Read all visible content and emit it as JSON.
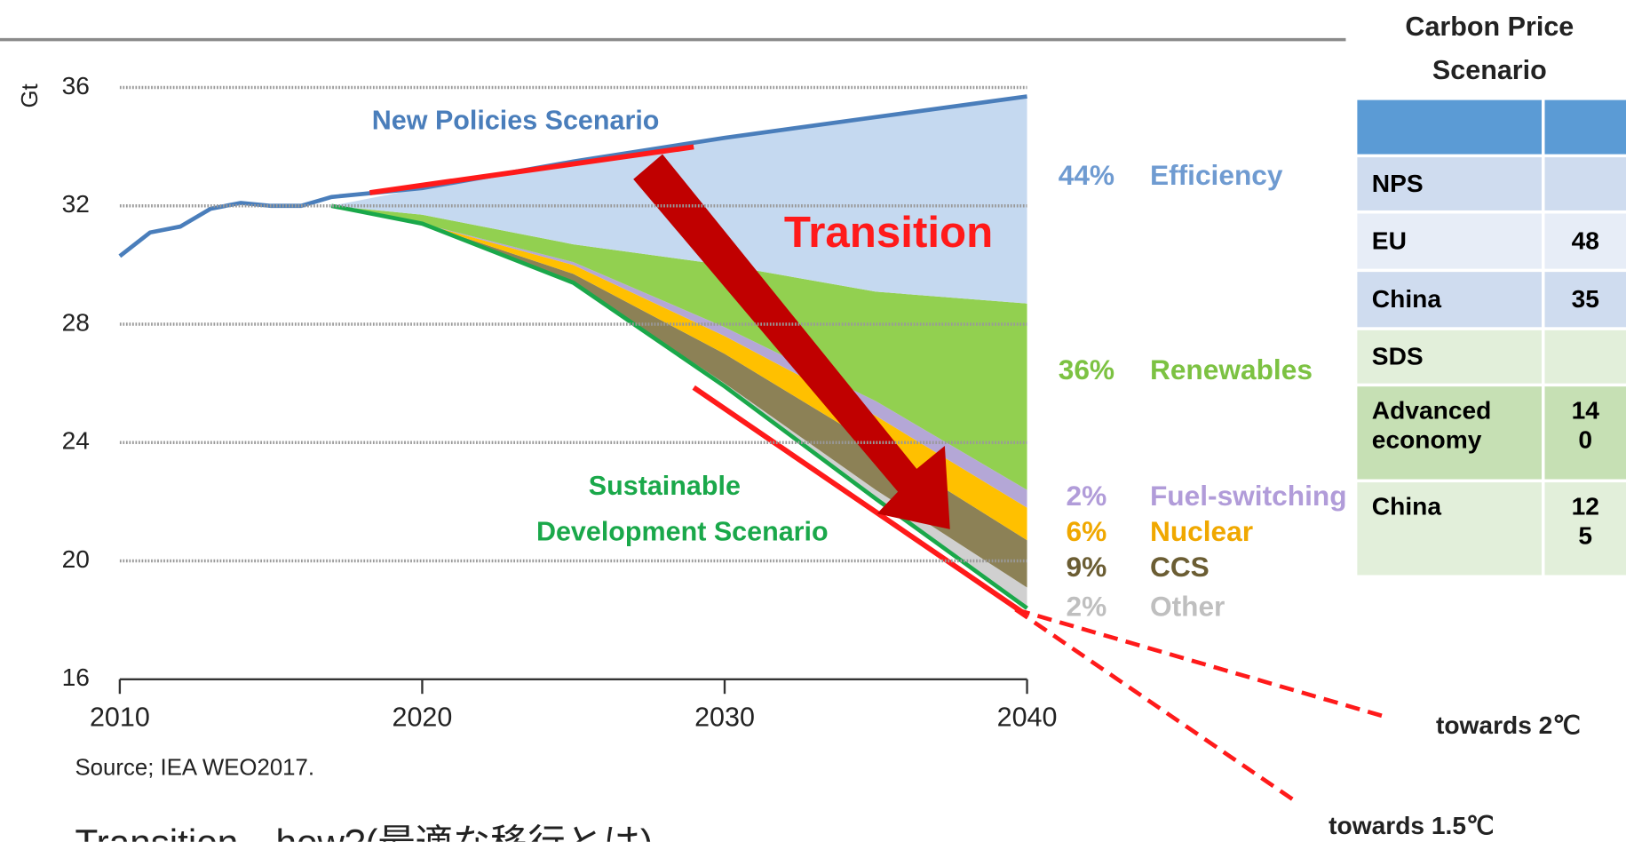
{
  "chart_data": {
    "type": "area",
    "y_label": "Gt",
    "x": [
      2010,
      2011,
      2012,
      2013,
      2014,
      2015,
      2016,
      2017,
      2020,
      2025,
      2030,
      2035,
      2040
    ],
    "xlim": [
      2010,
      2040
    ],
    "xticks": [
      2010,
      2020,
      2030,
      2040
    ],
    "ylim": [
      16,
      36
    ],
    "yticks": [
      16,
      20,
      24,
      28,
      32,
      36
    ],
    "grid": true,
    "lines": [
      {
        "name": "New Policies Scenario",
        "color": "#4a7ebb",
        "values": [
          30.3,
          31.1,
          31.3,
          31.9,
          32.1,
          32.0,
          32.0,
          32.3,
          32.6,
          33.5,
          34.3,
          35.0,
          35.7
        ]
      },
      {
        "label_lines": [
          "Sustainable",
          "Development  Scenario"
        ],
        "color": "#1aa84a",
        "values": [
          null,
          null,
          null,
          null,
          null,
          null,
          null,
          32.0,
          31.4,
          29.4,
          25.9,
          22.1,
          18.4
        ]
      }
    ],
    "series": [
      {
        "name": "Other",
        "label": "2%",
        "color": "#d0d0d0",
        "text_color": "#bfbfbf",
        "values": [
          null,
          null,
          null,
          null,
          null,
          null,
          null,
          0,
          0,
          0,
          0.1,
          0.3,
          0.7
        ]
      },
      {
        "name": "CCS",
        "label": "9%",
        "color": "#8c8156",
        "text_color": "#6b5d33",
        "values": [
          null,
          null,
          null,
          null,
          null,
          null,
          null,
          0,
          0,
          0.3,
          1.0,
          1.5,
          1.6
        ]
      },
      {
        "name": "Nuclear",
        "label": "6%",
        "color": "#ffc000",
        "text_color": "#f0a800",
        "values": [
          null,
          null,
          null,
          null,
          null,
          null,
          null,
          0,
          0,
          0.3,
          0.6,
          1.0,
          1.1
        ]
      },
      {
        "name": "Fuel-switching",
        "label": "2%",
        "color": "#b4a7d6",
        "text_color": "#b19cd9",
        "values": [
          null,
          null,
          null,
          null,
          null,
          null,
          null,
          0,
          0,
          0.1,
          0.3,
          0.5,
          0.6
        ]
      },
      {
        "name": "Renewables",
        "label": "36%",
        "color": "#92d050",
        "text_color": "#7cc242",
        "values": [
          null,
          null,
          null,
          null,
          null,
          null,
          null,
          0,
          0.3,
          0.6,
          2.1,
          3.7,
          6.3
        ]
      },
      {
        "name": "Efficiency",
        "label": "44%",
        "color": "#c5d9f0",
        "text_color": "#6f9bd1",
        "values": [
          null,
          null,
          null,
          null,
          null,
          null,
          null,
          0,
          0.9,
          2.8,
          4.3,
          5.9,
          7.0
        ]
      }
    ],
    "annotation": "Transition",
    "source": "Source; IEA WEO2017.",
    "targets": [
      "towards  2℃",
      "towards  1.5℃"
    ]
  },
  "table": {
    "title": "Carbon Price Scenario",
    "rows": [
      [
        "NPS"
      ],
      [
        "EU",
        "48"
      ],
      [
        "China",
        "35"
      ],
      [
        "SDS"
      ],
      [
        "Advanced economy",
        "140"
      ],
      [
        "China",
        "125"
      ]
    ]
  },
  "footer": "Transition　how?(最適な移行とは)"
}
